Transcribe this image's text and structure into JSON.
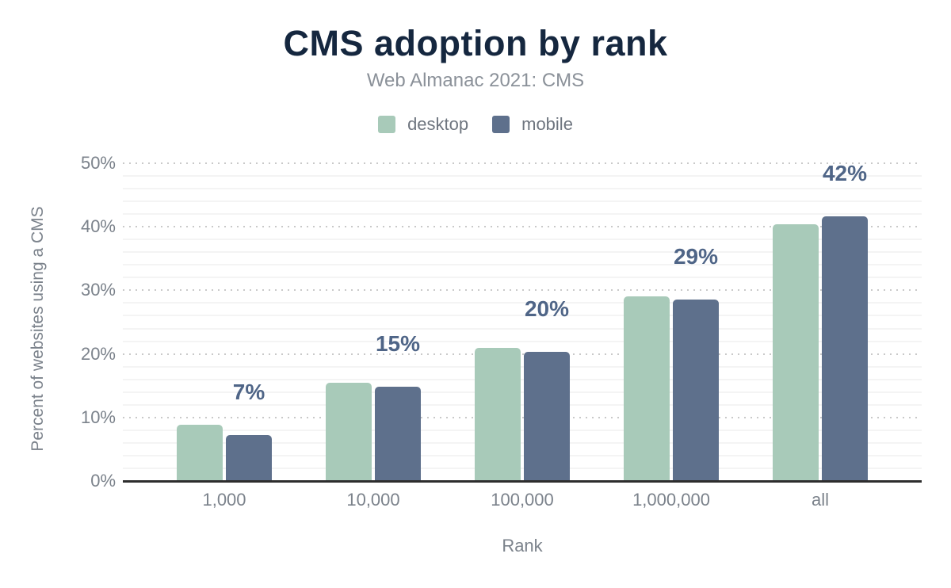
{
  "title": "CMS adoption by rank",
  "subtitle": "Web Almanac 2021: CMS",
  "legend": [
    {
      "label": "desktop",
      "color": "#a8cab9"
    },
    {
      "label": "mobile",
      "color": "#5e708c"
    }
  ],
  "colors": {
    "title": "#15273f",
    "subtitle": "#8b9199",
    "axis_line": "#2d2d2d",
    "tick_text": "#7b828b",
    "data_label": "#4f6587",
    "desktop_bar": "#a8cab9",
    "mobile_bar": "#5e708c"
  },
  "chart_data": {
    "type": "bar",
    "title": "CMS adoption by rank",
    "subtitle": "Web Almanac 2021: CMS",
    "categories": [
      "1,000",
      "10,000",
      "100,000",
      "1,000,000",
      "all"
    ],
    "series": [
      {
        "name": "desktop",
        "color": "#a8cab9",
        "values": [
          8.9,
          15.5,
          21.0,
          29.0,
          40.4
        ]
      },
      {
        "name": "mobile",
        "color": "#5e708c",
        "values": [
          7.2,
          14.8,
          20.3,
          28.5,
          41.7
        ]
      }
    ],
    "bar_labels": [
      "7%",
      "15%",
      "20%",
      "29%",
      "42%"
    ],
    "bar_label_color": "#4f6587",
    "xlabel": "Rank",
    "ylabel": "Percent of websites using a CMS",
    "ylim": [
      0,
      50
    ],
    "yticks": [
      "0%",
      "10%",
      "20%",
      "30%",
      "40%",
      "50%"
    ],
    "grid": {
      "major_step_pct": 10,
      "minor_step_pct": 2,
      "major_style": "dotted",
      "minor_style": "solid"
    },
    "legend_position": "top"
  }
}
